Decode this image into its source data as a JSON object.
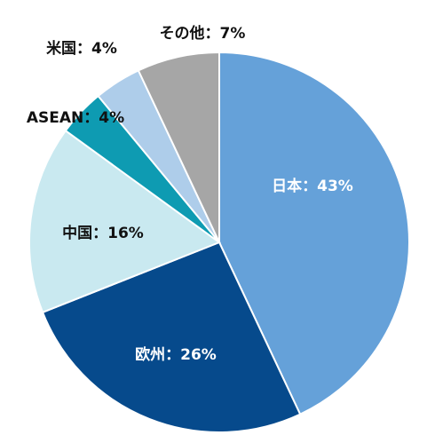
{
  "chart_data": {
    "type": "pie",
    "categories": [
      "日本",
      "欧州",
      "中国",
      "ASEAN",
      "米国",
      "その他"
    ],
    "values": [
      43,
      26,
      16,
      4,
      4,
      7
    ],
    "unit": "%",
    "labels": [
      "日本：43%",
      "欧州：26%",
      "中国：16%",
      "ASEAN：4%",
      "米国：4%",
      "その他：7%"
    ],
    "colors": [
      "#65A1D9",
      "#064A8C",
      "#C9E9F0",
      "#0E9BB2",
      "#AECDEA",
      "#A6A6A6"
    ],
    "label_colors": [
      "#ffffff",
      "#ffffff",
      "#111111",
      "#111111",
      "#111111",
      "#111111"
    ],
    "legend": "none"
  }
}
